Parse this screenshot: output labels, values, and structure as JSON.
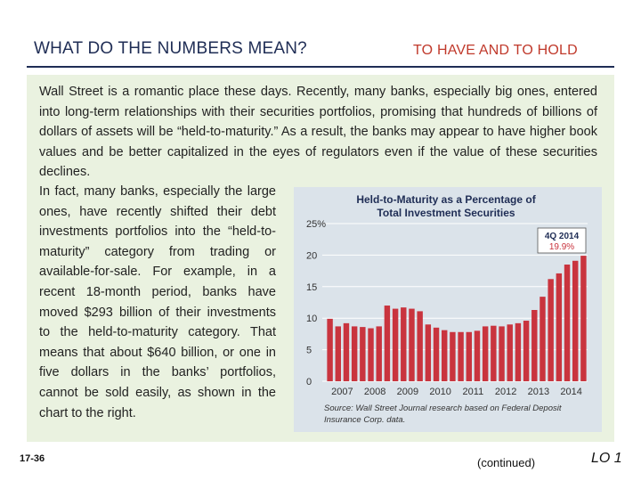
{
  "header": {
    "title": "WHAT DO THE NUMBERS MEAN?",
    "subtitle": "TO HAVE AND TO HOLD"
  },
  "body": {
    "paragraph1": "Wall Street is a romantic place these days. Recently, many banks, especially big ones, entered into long-term relationships with their securities portfolios, promising that hundreds of billions of dollars of assets will be “held-to-maturity.” As a result, the banks may appear to have higher book values and be better capitalized in the eyes of regulators even if the value of these securities declines.",
    "paragraph2": "In fact, many banks, especially the large ones, have recently shifted their debt investments portfolios into the “held-to-maturity” category from trading or available-for-sale. For example, in a recent 18-month period, banks have moved $293 billion of their investments to the held-to-maturity category. That means that about $640 billion, or one in five dollars in the banks’ portfolios, cannot be sold easily, as shown in the chart to the right."
  },
  "footer": {
    "slide_number": "17-36",
    "continued": "(continued)",
    "lo": "LO 1"
  },
  "colors": {
    "bar": "#c9343e",
    "title": "#1f2d55",
    "subtitle": "#c0392b"
  },
  "chart_data": {
    "type": "bar",
    "title_line1": "Held-to-Maturity as a Percentage of",
    "title_line2": "Total Investment Securities",
    "callout_label": "4Q 2014",
    "callout_value": "19.9%",
    "ylim": [
      0,
      25
    ],
    "yticks": [
      "25%",
      "20",
      "15",
      "10",
      "5",
      "0"
    ],
    "year_labels": [
      "2007",
      "2008",
      "2009",
      "2010",
      "2011",
      "2012",
      "2013",
      "2014"
    ],
    "values": [
      9.9,
      8.7,
      9.2,
      8.7,
      8.6,
      8.4,
      8.7,
      12.0,
      11.5,
      11.7,
      11.5,
      11.1,
      9.0,
      8.5,
      8.1,
      7.8,
      7.8,
      7.8,
      8.0,
      8.7,
      8.8,
      8.7,
      9.0,
      9.2,
      9.6,
      11.3,
      13.4,
      16.2,
      17.1,
      18.5,
      19.1,
      19.9
    ],
    "source": "Source: Wall Street Journal research based on Federal Deposit Insurance Corp. data."
  }
}
